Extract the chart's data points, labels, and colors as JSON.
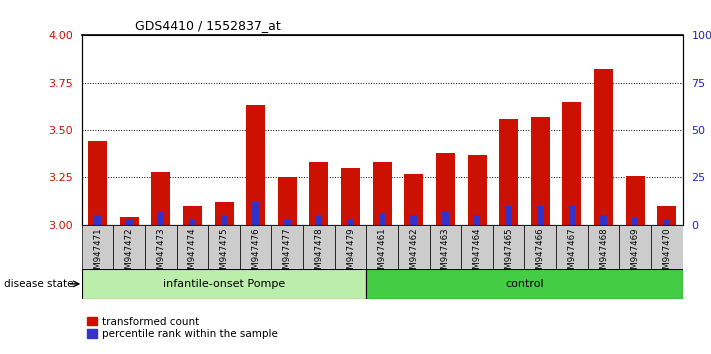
{
  "title": "GDS4410 / 1552837_at",
  "samples": [
    "GSM947471",
    "GSM947472",
    "GSM947473",
    "GSM947474",
    "GSM947475",
    "GSM947476",
    "GSM947477",
    "GSM947478",
    "GSM947479",
    "GSM947461",
    "GSM947462",
    "GSM947463",
    "GSM947464",
    "GSM947465",
    "GSM947466",
    "GSM947467",
    "GSM947468",
    "GSM947469",
    "GSM947470"
  ],
  "red_values": [
    3.44,
    3.04,
    3.28,
    3.1,
    3.12,
    3.63,
    3.25,
    3.33,
    3.3,
    3.33,
    3.27,
    3.38,
    3.37,
    3.56,
    3.57,
    3.65,
    3.82,
    3.26,
    3.1
  ],
  "blue_percentiles": [
    5,
    3,
    7,
    3,
    5,
    12,
    3,
    5,
    3,
    6,
    5,
    7,
    5,
    10,
    10,
    10,
    5,
    4,
    3
  ],
  "group1_label": "infantile-onset Pompe",
  "group2_label": "control",
  "group1_count": 9,
  "group2_count": 10,
  "ylim_left": [
    3.0,
    4.0
  ],
  "ylim_right": [
    0,
    100
  ],
  "yticks_left": [
    3.0,
    3.25,
    3.5,
    3.75,
    4.0
  ],
  "yticks_right": [
    0,
    25,
    50,
    75,
    100
  ],
  "bar_color_red": "#CC1100",
  "bar_color_blue": "#3333CC",
  "bar_width": 0.6,
  "tick_label_color_left": "#CC1100",
  "tick_label_color_right": "#2222CC",
  "group1_bg": "#bbeeaa",
  "group2_bg": "#44cc44",
  "sample_bg": "#cccccc",
  "legend_red": "transformed count",
  "legend_blue": "percentile rank within the sample",
  "disease_state_label": "disease state"
}
